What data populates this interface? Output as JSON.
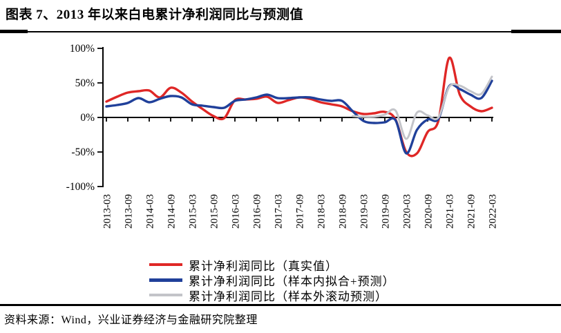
{
  "header": {
    "title": "图表 7、2013 年以来白电累计净利润同比与预测值"
  },
  "footer": {
    "source": "资料来源：Wind，兴业证券经济与金融研究院整理"
  },
  "chart_data": {
    "type": "line",
    "title": "图表 7、2013 年以来白电累计净利润同比与预测值",
    "xlabel": "",
    "ylabel": "",
    "ylim": [
      -100,
      100
    ],
    "grid": false,
    "legend_position": "bottom",
    "y_ticks": [
      {
        "label": "100%",
        "value": 100
      },
      {
        "label": "50%",
        "value": 50
      },
      {
        "label": "0%",
        "value": 0
      },
      {
        "label": "-50%",
        "value": -50
      },
      {
        "label": "-100%",
        "value": -100
      }
    ],
    "x_tick_labels": [
      "2013-03",
      "2013-09",
      "2014-03",
      "2014-09",
      "2015-03",
      "2015-09",
      "2016-03",
      "2016-09",
      "2017-03",
      "2017-09",
      "2018-03",
      "2018-09",
      "2019-03",
      "2019-09",
      "2020-03",
      "2020-09",
      "2021-03",
      "2021-09",
      "2022-03"
    ],
    "x": [
      "2013-03",
      "2013-06",
      "2013-09",
      "2013-12",
      "2014-03",
      "2014-06",
      "2014-09",
      "2014-12",
      "2015-03",
      "2015-06",
      "2015-09",
      "2015-12",
      "2016-03",
      "2016-06",
      "2016-09",
      "2016-12",
      "2017-03",
      "2017-06",
      "2017-09",
      "2017-12",
      "2018-03",
      "2018-06",
      "2018-09",
      "2018-12",
      "2019-03",
      "2019-06",
      "2019-09",
      "2019-12",
      "2020-03",
      "2020-06",
      "2020-09",
      "2020-12",
      "2021-03",
      "2021-06",
      "2021-09",
      "2021-12",
      "2022-03"
    ],
    "series": [
      {
        "name": "累计净利润同比（真实值）",
        "color": "#df2726",
        "values": [
          23,
          30,
          36,
          38,
          39,
          29,
          43,
          36,
          23,
          12,
          2,
          -1,
          25,
          26,
          27,
          30,
          21,
          25,
          29,
          27,
          22,
          19,
          16,
          9,
          5,
          6,
          8,
          -3,
          -50,
          -52,
          -21,
          -5,
          86,
          33,
          16,
          9,
          14
        ]
      },
      {
        "name": "累计净利润同比（样本内拟合+预测）",
        "color": "#20409a",
        "values": [
          16,
          18,
          21,
          28,
          22,
          27,
          31,
          29,
          19,
          17,
          15,
          14,
          24,
          26,
          29,
          33,
          28,
          28,
          29,
          29,
          26,
          24,
          24,
          9,
          -5,
          -8,
          -7,
          -4,
          -52,
          -18,
          -3,
          -2,
          45,
          41,
          33,
          28,
          53
        ]
      },
      {
        "name": "累计净利润同比（样本外滚动预测）",
        "color": "#c3c4c9",
        "values": [
          null,
          null,
          null,
          null,
          null,
          null,
          null,
          null,
          null,
          null,
          null,
          null,
          null,
          null,
          null,
          null,
          null,
          null,
          null,
          null,
          null,
          null,
          null,
          2,
          1,
          1,
          4,
          10,
          -31,
          7,
          3,
          0,
          44,
          46,
          38,
          34,
          59
        ]
      }
    ]
  }
}
